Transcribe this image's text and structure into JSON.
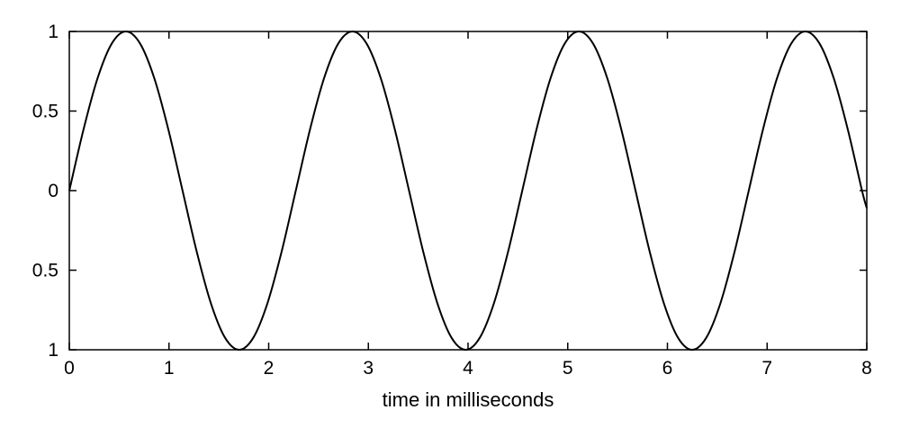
{
  "chart_data": {
    "type": "line",
    "title": "",
    "xlabel": "time in milliseconds",
    "ylabel": "",
    "xlim": [
      0,
      8
    ],
    "ylim": [
      -1,
      1
    ],
    "x_ticks": [
      0,
      1,
      2,
      3,
      4,
      5,
      6,
      7,
      8
    ],
    "x_tick_labels": [
      "0",
      "1",
      "2",
      "3",
      "4",
      "5",
      "6",
      "7",
      "8"
    ],
    "y_ticks": [
      1,
      0.5,
      0,
      -0.5,
      -1
    ],
    "y_tick_labels": [
      "1",
      "0.5",
      "0",
      "0.5",
      "1"
    ],
    "grid": false,
    "line_color": "#000000",
    "series": [
      {
        "x": [
          0,
          0.142,
          0.284,
          0.426,
          0.568,
          0.71,
          0.852,
          0.994,
          1.136,
          1.278,
          1.42,
          1.562,
          1.704,
          1.846,
          1.988,
          2.13,
          2.272,
          2.414,
          2.556,
          2.698,
          2.84,
          2.982,
          3.124,
          3.266,
          3.408,
          3.55,
          3.692,
          3.834,
          3.976,
          4.118,
          4.26,
          4.402,
          4.544,
          4.686,
          4.828,
          4.97,
          5.112,
          5.254,
          5.396,
          5.538,
          5.68,
          5.822,
          5.964,
          6.106,
          6.248,
          6.39,
          6.532,
          6.674,
          6.816,
          6.958,
          7.1,
          7.242,
          7.384,
          7.526,
          7.668,
          7.81,
          7.952,
          8.0
        ],
        "y": [
          0,
          0.383,
          0.707,
          0.924,
          1,
          0.924,
          0.707,
          0.383,
          0,
          -0.383,
          -0.707,
          -0.924,
          -1,
          -0.924,
          -0.707,
          -0.383,
          0,
          0.383,
          0.707,
          0.924,
          1,
          0.924,
          0.707,
          0.383,
          0,
          -0.383,
          -0.707,
          -0.924,
          -1,
          -0.924,
          -0.707,
          -0.383,
          0,
          0.383,
          0.707,
          0.924,
          1,
          0.924,
          0.707,
          0.383,
          0,
          -0.383,
          -0.707,
          -0.924,
          -1,
          -0.924,
          -0.707,
          -0.383,
          0,
          0.383,
          0.707,
          0.924,
          1,
          0.924,
          0.707,
          0.383,
          0,
          -0.11
        ]
      }
    ]
  }
}
